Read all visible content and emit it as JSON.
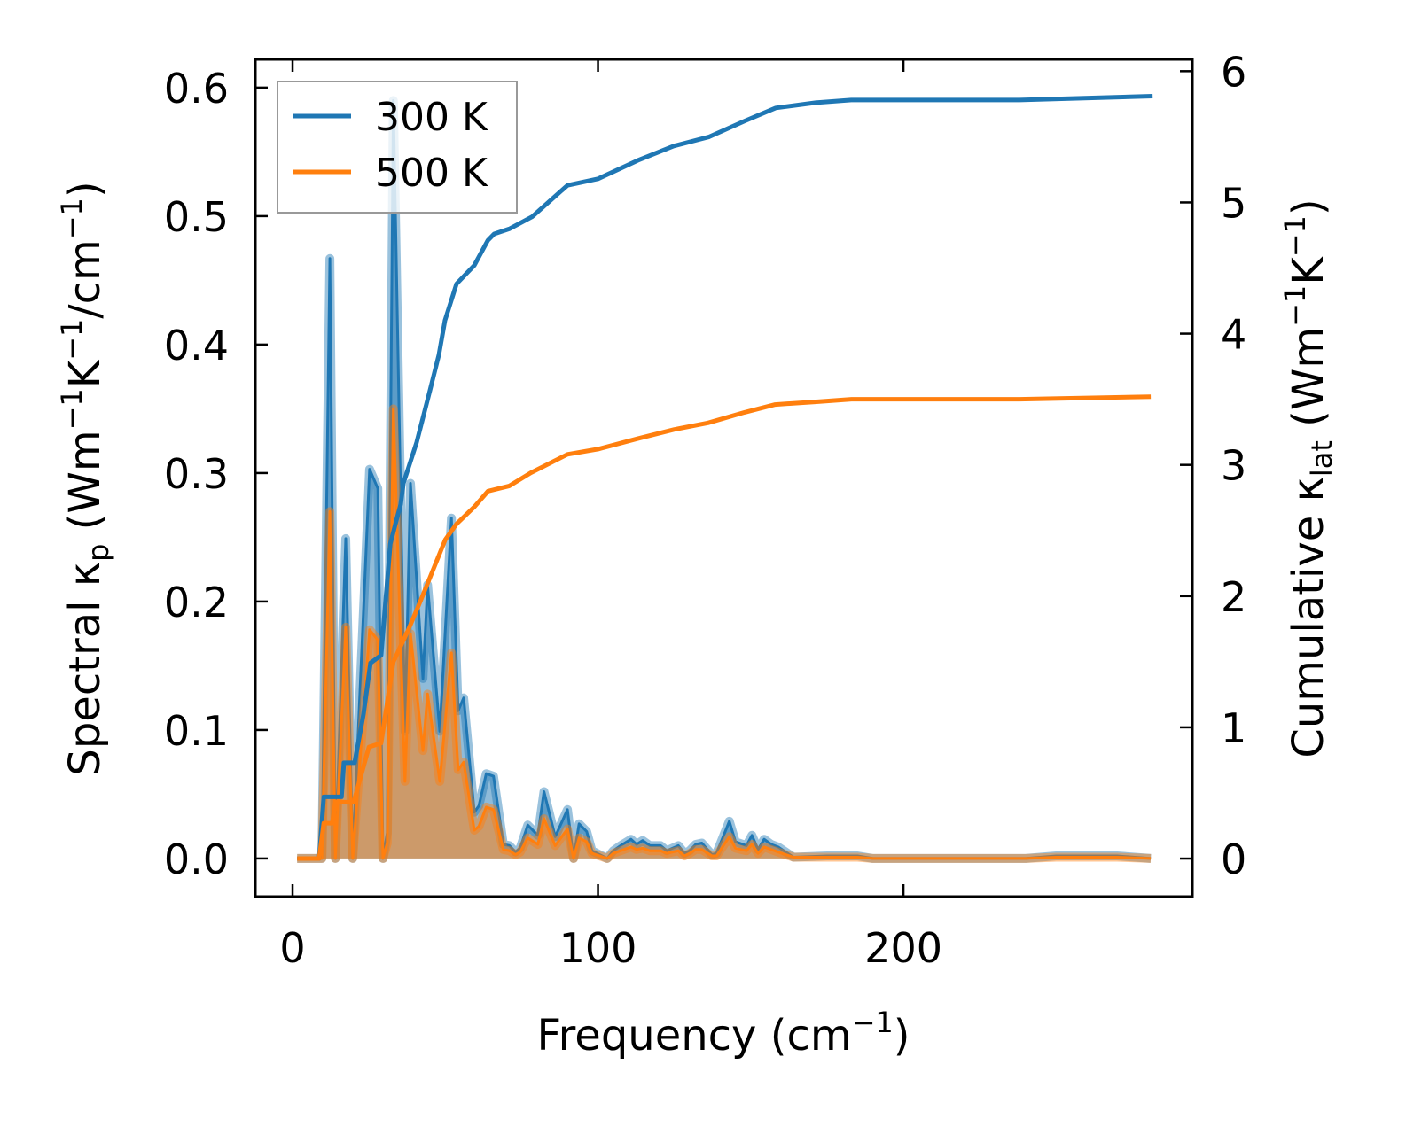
{
  "chart_data": {
    "type": "line",
    "xlabel": {
      "main": "Frequency (cm",
      "sup": "−1",
      "end": ")"
    },
    "ylabel_left": {
      "p1": "Spectral κ",
      "sub": "p",
      "p2": " (Wm",
      "sup1": "−1",
      "p3": "K",
      "sup2": "−1",
      "p4": "/cm",
      "sup3": "−1",
      "p5": ")"
    },
    "ylabel_right": {
      "p1": "Cumulative κ",
      "sub": "lat",
      "p2": " (Wm",
      "sup1": "−1",
      "p3": "K",
      "sup2": "−1",
      "p4": ")"
    },
    "xlim": [
      -12.2,
      294.6
    ],
    "ylim_left": [
      -0.0297,
      0.622
    ],
    "ylim_right": [
      -0.29,
      6.09
    ],
    "xticks": [
      0,
      100,
      200
    ],
    "xtick_labels": [
      "0",
      "100",
      "200"
    ],
    "yticks_left": [
      0.0,
      0.1,
      0.2,
      0.3,
      0.4,
      0.5,
      0.6
    ],
    "ytick_labels_left": [
      "0.0",
      "0.1",
      "0.2",
      "0.3",
      "0.4",
      "0.5",
      "0.6"
    ],
    "yticks_right": [
      0,
      1,
      2,
      3,
      4,
      5,
      6
    ],
    "ytick_labels_right": [
      "0",
      "1",
      "2",
      "3",
      "4",
      "5",
      "6"
    ],
    "legend_position": "upper-left",
    "grid": false,
    "series": [
      {
        "name": "300 K",
        "color": "#1f77b4",
        "spectral_x": [
          1.5,
          9.6,
          12.2,
          14,
          17.4,
          19.7,
          25.2,
          27.9,
          29.6,
          31,
          33,
          36.8,
          38.6,
          42.7,
          44.2,
          48.2,
          52,
          54.2,
          56,
          59.5,
          61,
          63.4,
          65.8,
          69,
          71,
          73,
          74.5,
          77,
          80.3,
          82.3,
          86,
          90,
          92,
          93.8,
          96.3,
          98,
          103,
          105,
          107.4,
          110.8,
          112.6,
          114.6,
          117,
          120.5,
          122.5,
          126.3,
          128.3,
          130,
          132,
          134,
          137.3,
          138.8,
          143,
          145,
          148.6,
          150.4,
          152.4,
          154.4,
          156.7,
          159,
          161.5,
          164,
          175,
          185,
          190,
          240,
          250,
          260,
          270,
          281
        ],
        "spectral_y": [
          0,
          0,
          0.467,
          0,
          0.249,
          0,
          0.303,
          0.288,
          0,
          0.02,
          0.59,
          0.099,
          0.292,
          0.14,
          0.213,
          0.099,
          0.265,
          0.115,
          0.125,
          0.036,
          0.041,
          0.066,
          0.064,
          0.011,
          0.01,
          0.005,
          0.008,
          0.026,
          0.018,
          0.052,
          0.017,
          0.038,
          0,
          0.027,
          0.021,
          0.006,
          0,
          0.006,
          0.01,
          0.015,
          0.011,
          0.014,
          0.01,
          0.01,
          0.006,
          0.01,
          0.004,
          0.006,
          0.011,
          0.012,
          0.003,
          0.004,
          0.029,
          0.013,
          0.01,
          0.018,
          0.007,
          0.015,
          0.011,
          0.009,
          0.005,
          0.001,
          0.002,
          0.002,
          0,
          0,
          0.002,
          0.002,
          0.002,
          0
        ],
        "cumulative_x": [
          1.5,
          8.7,
          10.2,
          16,
          16.8,
          20.3,
          23.2,
          25.5,
          29,
          32,
          34,
          35.4,
          36.3,
          40.6,
          45,
          47.9,
          49.9,
          53.7,
          59.5,
          63.9,
          66,
          71.1,
          78.4,
          90,
          100,
          113,
          124.8,
          136.4,
          148,
          158.2,
          171.3,
          182.9,
          238,
          281.6
        ],
        "cumulative_y": [
          0,
          0,
          0.47,
          0.47,
          0.73,
          0.73,
          1.1,
          1.49,
          1.55,
          2.4,
          2.58,
          2.7,
          2.86,
          3.17,
          3.57,
          3.84,
          4.1,
          4.38,
          4.52,
          4.71,
          4.76,
          4.8,
          4.89,
          5.13,
          5.18,
          5.32,
          5.43,
          5.5,
          5.62,
          5.72,
          5.76,
          5.78,
          5.78,
          5.81
        ]
      },
      {
        "name": "500 K",
        "color": "#ff7f0e",
        "spectral_x": [
          1.5,
          9.6,
          12.2,
          14,
          17.4,
          19.7,
          25.2,
          27.9,
          29.6,
          31,
          33,
          36.8,
          38.6,
          42.7,
          44.2,
          48.2,
          52,
          54.2,
          56,
          59.5,
          61,
          63.4,
          65.8,
          69,
          71,
          73,
          74.5,
          77,
          80.3,
          82.3,
          86,
          90,
          92,
          93.8,
          96.3,
          98,
          103,
          105,
          107.4,
          110.8,
          112.6,
          114.6,
          117,
          120.5,
          122.5,
          126.3,
          128.3,
          130,
          132,
          134,
          137.3,
          138.8,
          143,
          145,
          148.6,
          150.4,
          152.4,
          154.4,
          156.7,
          159,
          161.5,
          164,
          175,
          185,
          190,
          240,
          250,
          260,
          270,
          281
        ],
        "spectral_y": [
          0,
          0,
          0.27,
          0,
          0.18,
          0,
          0.178,
          0.17,
          0,
          0.012,
          0.35,
          0.06,
          0.175,
          0.084,
          0.128,
          0.06,
          0.16,
          0.069,
          0.075,
          0.022,
          0.025,
          0.04,
          0.038,
          0.007,
          0.006,
          0.003,
          0.005,
          0.016,
          0.011,
          0.031,
          0.01,
          0.023,
          0,
          0.016,
          0.013,
          0.004,
          0,
          0.004,
          0.006,
          0.009,
          0.007,
          0.008,
          0.006,
          0.006,
          0.004,
          0.006,
          0.002,
          0.004,
          0.007,
          0.007,
          0.002,
          0.002,
          0.017,
          0.008,
          0.006,
          0.011,
          0.004,
          0.009,
          0.007,
          0.005,
          0.003,
          0.001,
          0.001,
          0.001,
          0,
          0,
          0.001,
          0.001,
          0.001,
          0
        ],
        "cumulative_x": [
          1.5,
          8.7,
          10.2,
          13,
          14,
          20,
          25,
          29,
          33,
          38,
          42,
          46,
          50,
          53.7,
          59.5,
          64,
          71,
          78,
          90,
          100,
          113,
          125,
          136,
          148,
          158,
          171,
          183,
          238,
          281
        ],
        "cumulative_y": [
          0,
          0,
          0.27,
          0.27,
          0.43,
          0.43,
          0.85,
          0.88,
          1.5,
          1.75,
          1.97,
          2.2,
          2.43,
          2.55,
          2.68,
          2.8,
          2.84,
          2.94,
          3.08,
          3.12,
          3.2,
          3.27,
          3.32,
          3.4,
          3.46,
          3.48,
          3.5,
          3.5,
          3.52
        ]
      }
    ]
  }
}
